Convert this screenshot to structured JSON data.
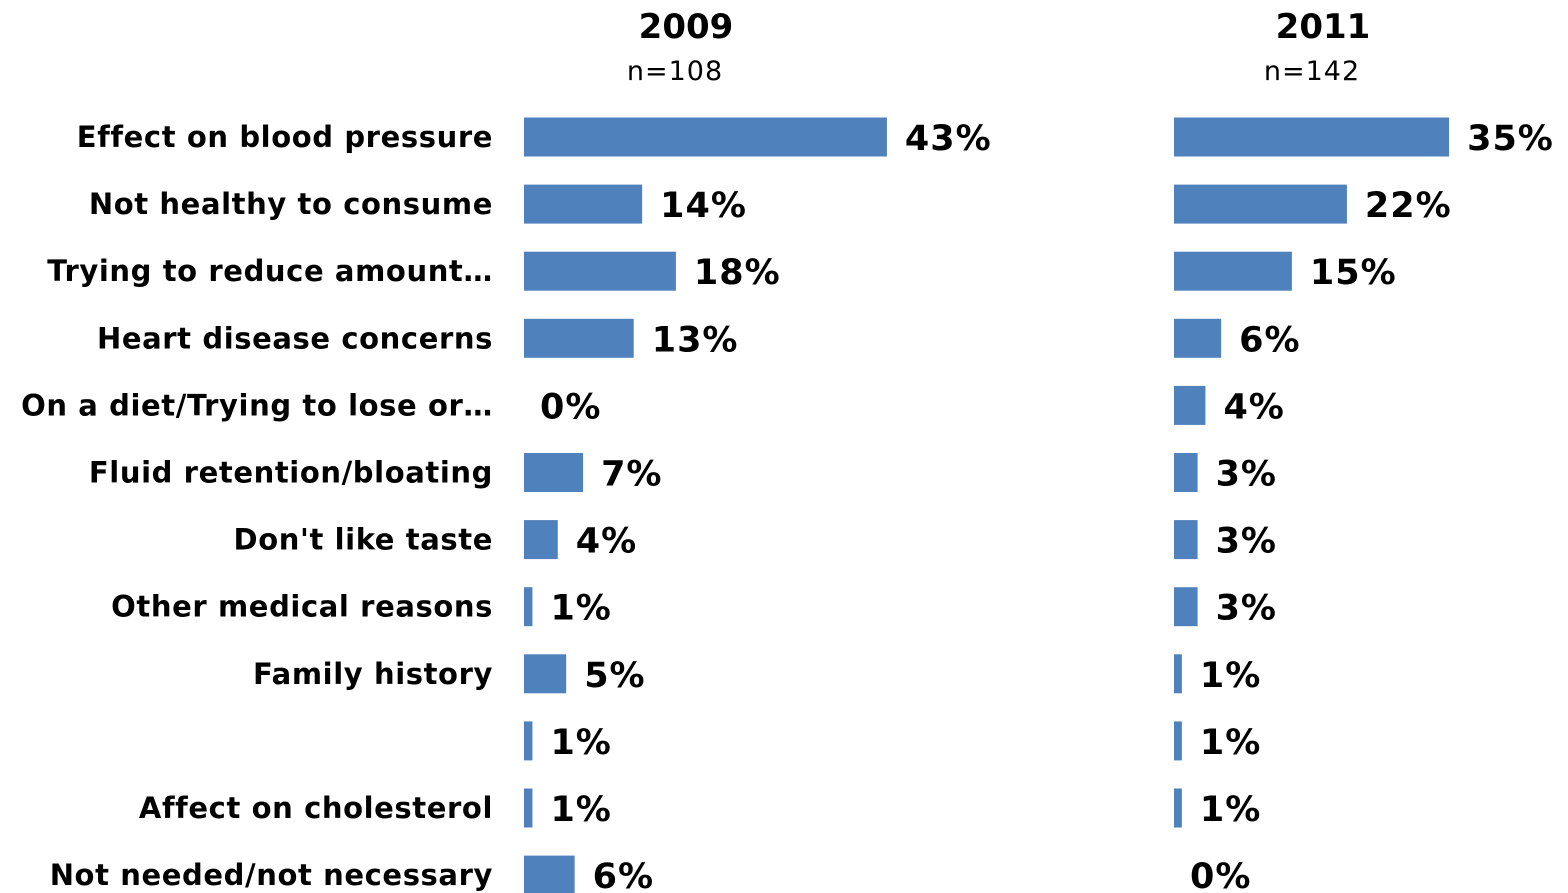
{
  "chart_data": {
    "type": "bar",
    "orientation": "horizontal",
    "unit": "%",
    "categories": [
      "Effect on blood pressure",
      "Not healthy to consume",
      "Trying to reduce amount…",
      "Heart disease concerns",
      "On a diet/Trying to lose or…",
      "Fluid retention/bloating",
      "Don't like taste",
      "Other medical reasons",
      "Family history",
      "",
      "Affect on cholesterol",
      "Not needed/not necessary"
    ],
    "series": [
      {
        "name": "2009",
        "subtitle": "n=108",
        "values": [
          43,
          14,
          18,
          13,
          0,
          7,
          4,
          1,
          5,
          1,
          1,
          6
        ],
        "labels": [
          "43%",
          "14%",
          "18%",
          "13%",
          "0%",
          "7%",
          "4%",
          "1%",
          "5%",
          "1%",
          "1%",
          "6%"
        ]
      },
      {
        "name": "2011",
        "subtitle": "n=142",
        "values": [
          35,
          22,
          15,
          6,
          4,
          3,
          3,
          3,
          1,
          1,
          1,
          0
        ],
        "labels": [
          "35%",
          "22%",
          "15%",
          "6%",
          "4%",
          "3%",
          "3%",
          "3%",
          "1%",
          "1%",
          "1%",
          "0%"
        ]
      }
    ],
    "bar_color": "#4f81bd",
    "grid": false,
    "legend": "none"
  }
}
